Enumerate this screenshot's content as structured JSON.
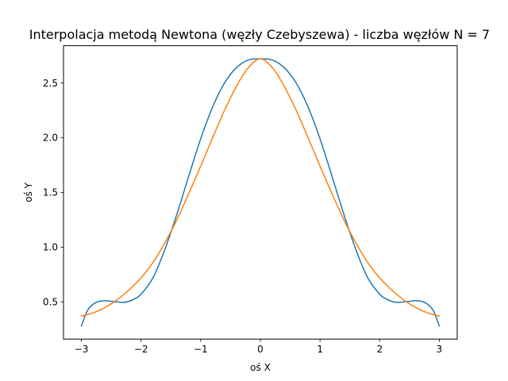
{
  "chart_data": {
    "type": "line",
    "title": "Interpolacja metodą Newtona (węzły Czebyszewa) - liczba węzłów N = 7",
    "xlabel": "oś X",
    "ylabel": "oś Y",
    "xlim": [
      -3.3,
      3.3
    ],
    "ylim": [
      0.16,
      2.84
    ],
    "xticks": [
      -3,
      -2,
      -1,
      0,
      1,
      2,
      3
    ],
    "xtick_labels": [
      "−3",
      "−2",
      "−1",
      "0",
      "1",
      "2",
      "3"
    ],
    "yticks": [
      0.5,
      1.0,
      1.5,
      2.0,
      2.5
    ],
    "ytick_labels": [
      "0.5",
      "1.0",
      "1.5",
      "2.0",
      "2.5"
    ],
    "grid": false,
    "series": [
      {
        "color": "#1f77b4",
        "x": [
          -3.0,
          -2.9,
          -2.8,
          -2.7,
          -2.6,
          -2.5,
          -2.4,
          -2.3,
          -2.2,
          -2.1,
          -2.0,
          -1.8,
          -1.6,
          -1.4,
          -1.2,
          -1.0,
          -0.8,
          -0.6,
          -0.4,
          -0.2,
          0.0,
          0.2,
          0.4,
          0.6,
          0.8,
          1.0,
          1.2,
          1.4,
          1.6,
          1.8,
          2.0,
          2.1,
          2.2,
          2.3,
          2.4,
          2.5,
          2.6,
          2.7,
          2.8,
          2.9,
          3.0
        ],
        "y": [
          0.28,
          0.42,
          0.48,
          0.505,
          0.51,
          0.505,
          0.5,
          0.495,
          0.505,
          0.53,
          0.57,
          0.72,
          0.98,
          1.3,
          1.65,
          1.99,
          2.28,
          2.5,
          2.64,
          2.71,
          2.72,
          2.71,
          2.64,
          2.5,
          2.28,
          1.99,
          1.65,
          1.3,
          0.98,
          0.72,
          0.57,
          0.53,
          0.505,
          0.495,
          0.5,
          0.505,
          0.51,
          0.505,
          0.48,
          0.42,
          0.28
        ]
      },
      {
        "color": "#ff7f0e",
        "x": [
          -3.0,
          -2.8,
          -2.6,
          -2.4,
          -2.2,
          -2.0,
          -1.8,
          -1.6,
          -1.4,
          -1.2,
          -1.0,
          -0.8,
          -0.6,
          -0.4,
          -0.2,
          0.0,
          0.2,
          0.4,
          0.6,
          0.8,
          1.0,
          1.2,
          1.4,
          1.6,
          1.8,
          2.0,
          2.2,
          2.4,
          2.6,
          2.8,
          3.0
        ],
        "y": [
          0.37,
          0.4,
          0.45,
          0.52,
          0.61,
          0.72,
          0.86,
          1.04,
          1.25,
          1.49,
          1.74,
          2.0,
          2.25,
          2.47,
          2.64,
          2.72,
          2.64,
          2.47,
          2.25,
          2.0,
          1.74,
          1.49,
          1.25,
          1.04,
          0.86,
          0.72,
          0.61,
          0.52,
          0.45,
          0.4,
          0.37
        ]
      }
    ]
  }
}
